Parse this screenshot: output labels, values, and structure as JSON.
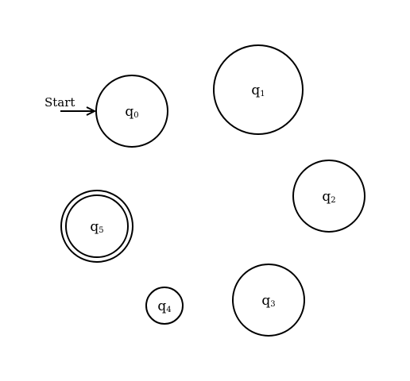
{
  "start_label": "Start",
  "accepting_states": [
    "q5"
  ],
  "initial_state": "q0",
  "states": [
    {
      "id": "q0",
      "base": "q",
      "sub": "0"
    },
    {
      "id": "q1",
      "base": "q",
      "sub": "1"
    },
    {
      "id": "q2",
      "base": "q",
      "sub": "2"
    },
    {
      "id": "q3",
      "base": "q",
      "sub": "3"
    },
    {
      "id": "q4",
      "base": "q",
      "sub": "4"
    },
    {
      "id": "q5",
      "base": "q",
      "sub": "5"
    }
  ]
}
